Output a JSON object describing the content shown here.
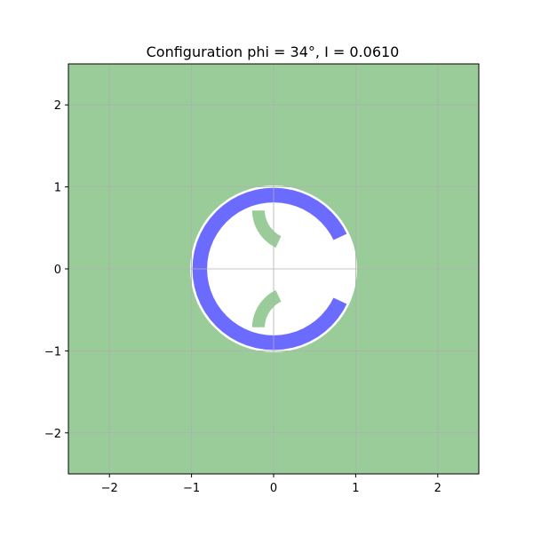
{
  "chart_data": {
    "type": "area",
    "title": "Configuration phi = 34°, I = 0.0610",
    "xlabel": "",
    "ylabel": "",
    "xlim": [
      -2.5,
      2.5
    ],
    "ylim": [
      -2.5,
      2.5
    ],
    "aspect": "equal",
    "grid": true,
    "legend": "none",
    "xticks": [
      -2,
      -1,
      0,
      1,
      2
    ],
    "yticks": [
      -2,
      -1,
      0,
      1,
      2
    ],
    "xtick_labels": [
      "−2",
      "−1",
      "0",
      "1",
      "2"
    ],
    "ytick_labels": [
      "−2",
      "−1",
      "0",
      "1",
      "2"
    ],
    "colors": {
      "background_region": "#99cc99",
      "ring": "#6b6bff",
      "hole": "#ffffff",
      "grid": "#b0b0b0",
      "spine": "#000000"
    },
    "regions": {
      "white_disk": {
        "center": [
          0,
          0
        ],
        "radius": 1.0
      },
      "ring": {
        "center": [
          0,
          0
        ],
        "inner_radius": 0.8,
        "outer_radius": 1.0,
        "gap_start_deg": -25,
        "gap_end_deg": 25
      },
      "fingers": [
        {
          "center": [
            0.25,
            0.72
          ],
          "radius": 0.52,
          "inner_radius": 0.35,
          "start_deg": 180,
          "end_deg": 245
        },
        {
          "center": [
            0.25,
            -0.72
          ],
          "radius": 0.52,
          "inner_radius": 0.35,
          "start_deg": 115,
          "end_deg": 180
        }
      ]
    },
    "phi_deg": 34,
    "I": 0.061
  }
}
